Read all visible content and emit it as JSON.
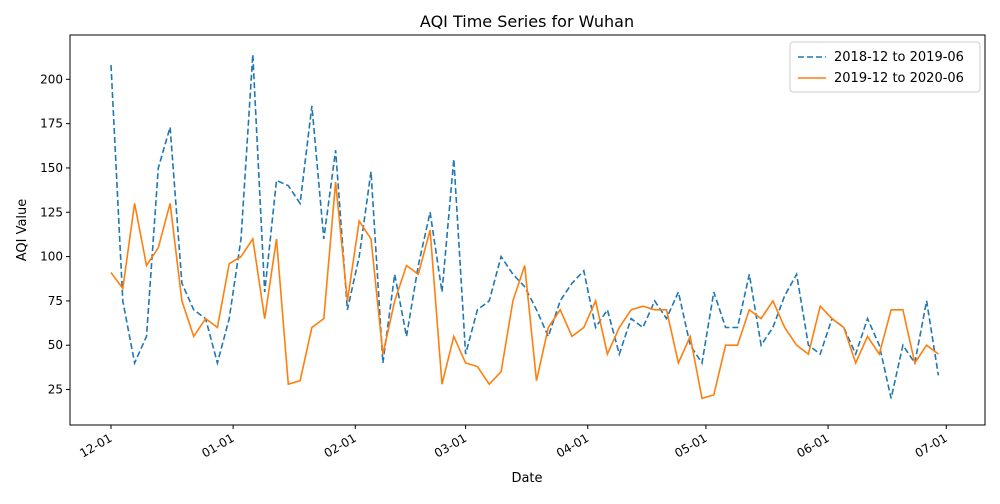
{
  "chart_data": {
    "type": "line",
    "title": "AQI Time Series for Wuhan",
    "x_label": "Date",
    "y_label": "AQI Value",
    "x": [
      "12-01",
      "12-04",
      "12-07",
      "12-10",
      "12-13",
      "12-16",
      "12-19",
      "12-22",
      "12-25",
      "12-28",
      "12-31",
      "01-03",
      "01-06",
      "01-09",
      "01-12",
      "01-15",
      "01-18",
      "01-21",
      "01-24",
      "01-27",
      "01-30",
      "02-02",
      "02-05",
      "02-08",
      "02-11",
      "02-14",
      "02-17",
      "02-20",
      "02-23",
      "02-26",
      "03-01",
      "03-04",
      "03-07",
      "03-10",
      "03-13",
      "03-16",
      "03-19",
      "03-22",
      "03-25",
      "03-28",
      "03-31",
      "04-03",
      "04-06",
      "04-09",
      "04-12",
      "04-15",
      "04-18",
      "04-21",
      "04-24",
      "04-27",
      "04-30",
      "05-03",
      "05-06",
      "05-09",
      "05-12",
      "05-15",
      "05-18",
      "05-21",
      "05-24",
      "05-27",
      "05-30",
      "06-02",
      "06-05",
      "06-08",
      "06-11",
      "06-14",
      "06-17",
      "06-20",
      "06-23",
      "06-26",
      "06-29"
    ],
    "series": [
      {
        "name": "2018-12 to 2019-06",
        "color": "#1f77b4",
        "linestyle": "dashed",
        "values": [
          208,
          75,
          40,
          55,
          150,
          173,
          85,
          70,
          65,
          40,
          65,
          110,
          214,
          80,
          143,
          140,
          130,
          185,
          110,
          160,
          70,
          100,
          148,
          40,
          90,
          55,
          95,
          125,
          80,
          155,
          45,
          70,
          75,
          100,
          90,
          83,
          70,
          55,
          75,
          85,
          92,
          60,
          70,
          45,
          65,
          60,
          75,
          65,
          80,
          50,
          40,
          80,
          60,
          60,
          90,
          50,
          60,
          78,
          90,
          50,
          45,
          65,
          60,
          45,
          65,
          50,
          20,
          50,
          40,
          75,
          33
        ]
      },
      {
        "name": "2019-12 to 2020-06",
        "color": "#ff7f0e",
        "linestyle": "solid",
        "values": [
          91,
          82,
          130,
          95,
          105,
          130,
          75,
          55,
          65,
          60,
          96,
          100,
          110,
          65,
          110,
          28,
          30,
          60,
          65,
          142,
          75,
          120,
          110,
          45,
          75,
          95,
          90,
          115,
          28,
          55,
          40,
          38,
          28,
          35,
          75,
          95,
          30,
          60,
          70,
          55,
          60,
          75,
          45,
          60,
          70,
          72,
          70,
          70,
          40,
          55,
          20,
          22,
          50,
          50,
          70,
          65,
          75,
          60,
          50,
          45,
          72,
          65,
          60,
          40,
          55,
          45,
          70,
          70,
          40,
          50,
          45
        ]
      }
    ],
    "xticks": [
      "12-01",
      "01-01",
      "02-01",
      "03-01",
      "04-01",
      "05-01",
      "06-01",
      "07-01"
    ],
    "ylim": [
      5,
      225
    ],
    "yticks": [
      25,
      50,
      75,
      100,
      125,
      150,
      175,
      200
    ],
    "legend": "upper right"
  }
}
